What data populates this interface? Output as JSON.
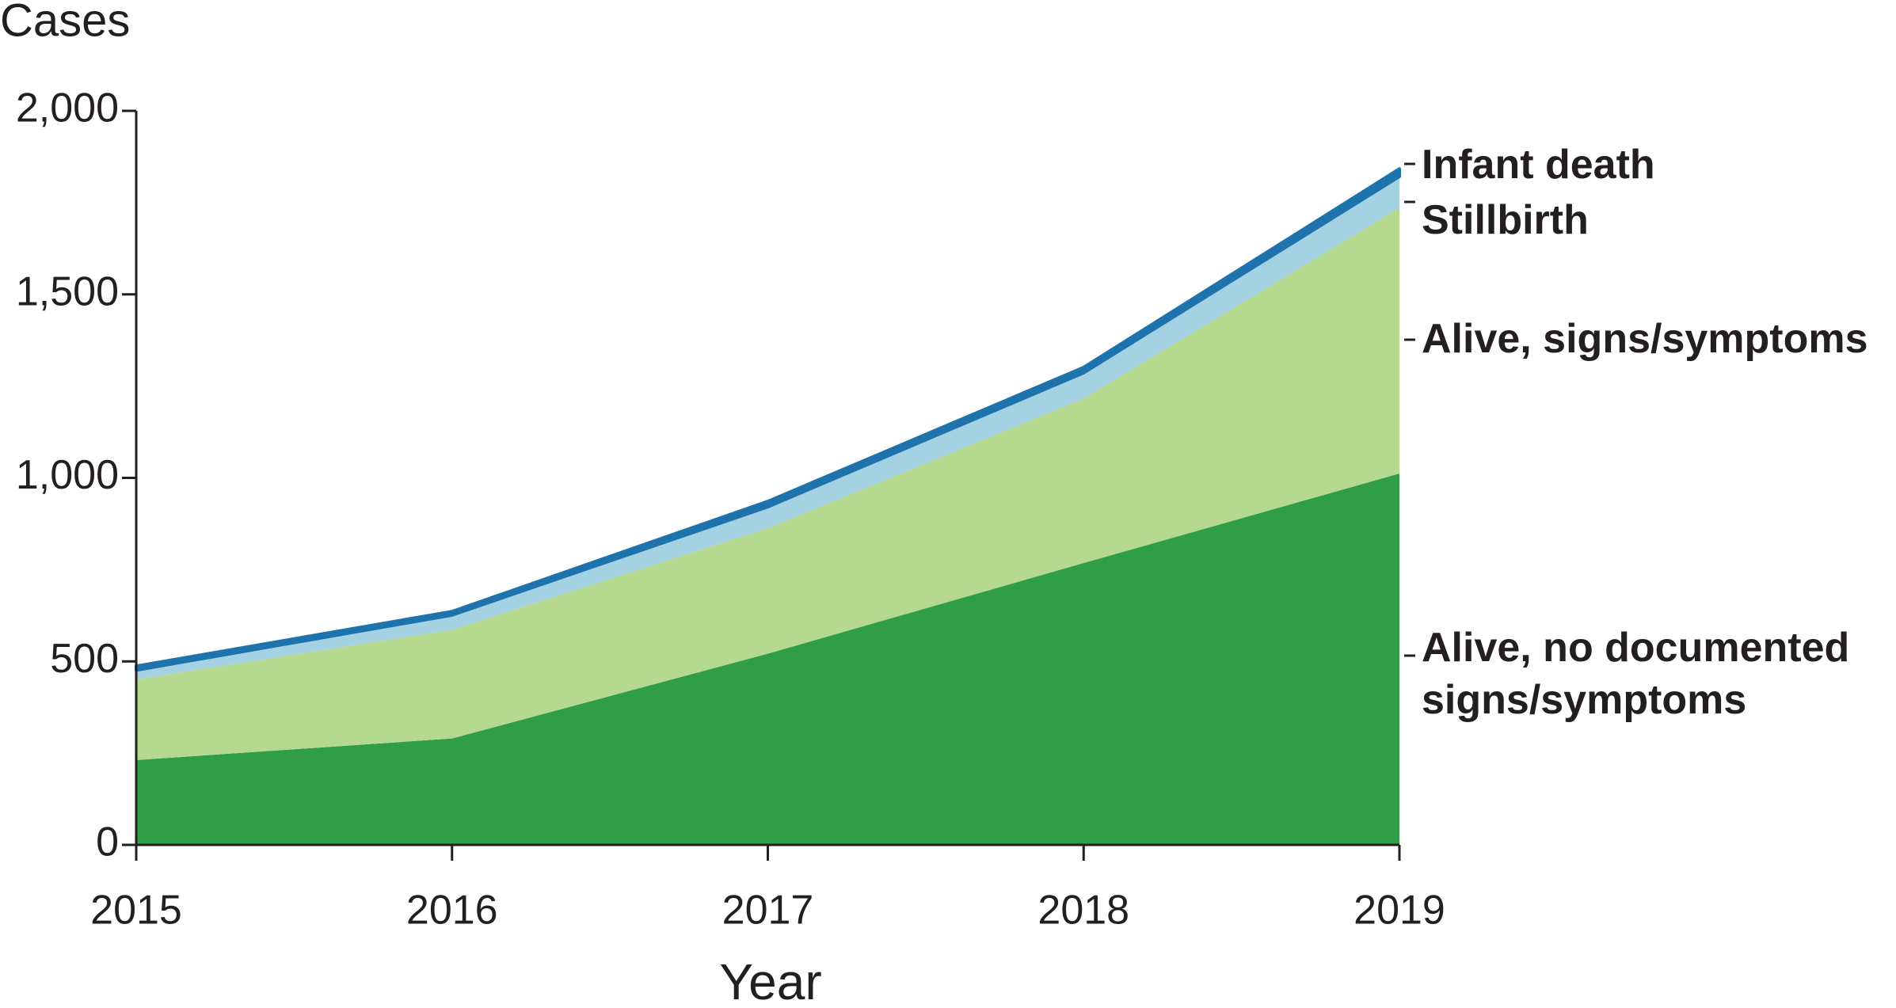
{
  "chart_data": {
    "type": "stacked-area",
    "y_label": "Cases",
    "x_label": "Year",
    "categories": [
      "2015",
      "2016",
      "2017",
      "2018",
      "2019"
    ],
    "series": [
      {
        "name": "Alive, no documented signs/symptoms",
        "color": "#2f9e47",
        "values": [
          231,
          290,
          521,
          768,
          1012
        ]
      },
      {
        "name": "Alive, signs/symptoms",
        "color": "#b5d98e",
        "values": [
          220,
          296,
          342,
          448,
          724
        ]
      },
      {
        "name": "Stillbirth",
        "color": "#a5d2e3",
        "values": [
          25,
          40,
          58,
          70,
          85
        ]
      },
      {
        "name": "Infant death",
        "color": "#1f73ad",
        "values": [
          11,
          10,
          15,
          15,
          21
        ]
      }
    ],
    "ylim": [
      0,
      2000
    ],
    "yticks": [
      0,
      500,
      {
        "value": 1000,
        "label": "1,000"
      },
      {
        "value": 1500,
        "label": "1,500"
      },
      {
        "value": 2000,
        "label": "2,000"
      }
    ]
  }
}
